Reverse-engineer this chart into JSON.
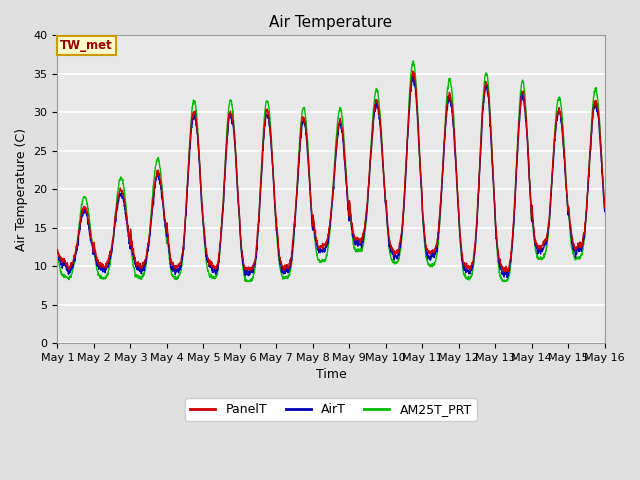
{
  "title": "Air Temperature",
  "xlabel": "Time",
  "ylabel": "Air Temperature (C)",
  "ylim": [
    0,
    40
  ],
  "xlim": [
    0,
    15
  ],
  "fig_bg_color": "#e0e0e0",
  "plot_bg_color": "#e8e8e8",
  "annotation_text": "TW_met",
  "annotation_color": "#990000",
  "annotation_bg": "#ffffcc",
  "annotation_border": "#cc9900",
  "series": {
    "PanelT": {
      "color": "#cc0000",
      "linewidth": 1.0,
      "zorder": 3
    },
    "AirT": {
      "color": "#0000bb",
      "linewidth": 1.0,
      "zorder": 2
    },
    "AM25T_PRT": {
      "color": "#00bb00",
      "linewidth": 1.0,
      "zorder": 1
    }
  },
  "x_tick_labels": [
    "May 1",
    "May 2",
    "May 3",
    "May 4",
    "May 5",
    "May 6",
    "May 7",
    "May 8",
    "May 9",
    "May 10",
    "May 11",
    "May 12",
    "May 13",
    "May 14",
    "May 15",
    "May 16"
  ],
  "y_ticks": [
    0,
    5,
    10,
    15,
    20,
    25,
    30,
    35,
    40
  ],
  "font_size": 9,
  "title_font_size": 11,
  "tick_font_size": 8
}
